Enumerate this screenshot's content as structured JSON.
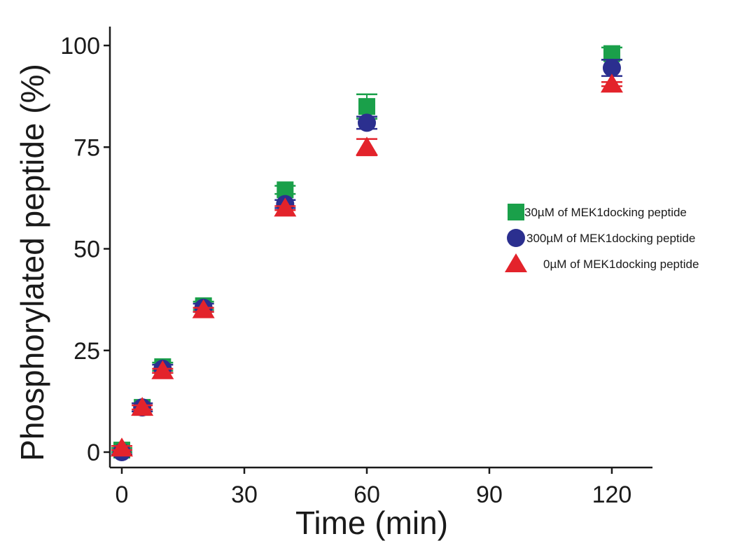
{
  "chart_data": {
    "type": "scatter",
    "title": "",
    "xlabel": "Time (min)",
    "ylabel": "Phosphorylated peptide (%)",
    "xlim": [
      -2,
      130
    ],
    "ylim": [
      -3,
      105
    ],
    "xticks": [
      0,
      30,
      60,
      90,
      120
    ],
    "yticks": [
      0,
      25,
      50,
      75,
      100
    ],
    "grid": false,
    "legend_position": "right",
    "series": [
      {
        "name": "30µM of MEK1docking peptide",
        "marker": "square",
        "color": "#1aa04a",
        "x": [
          0,
          5,
          10,
          20,
          40,
          60,
          120
        ],
        "y": [
          0.5,
          11,
          21,
          36,
          64.5,
          85,
          98
        ],
        "error": [
          0.5,
          1,
          1,
          1,
          1,
          3,
          1.5
        ]
      },
      {
        "name": "300µM of MEK1docking peptide",
        "marker": "circle",
        "color": "#2b2f8f",
        "x": [
          0,
          5,
          10,
          20,
          40,
          60,
          120
        ],
        "y": [
          0,
          11,
          20.5,
          35.5,
          61,
          81,
          94.5
        ],
        "error": [
          0.5,
          1,
          1,
          1,
          1,
          1.5,
          2
        ]
      },
      {
        "name": "0µM of MEK1docking peptide",
        "marker": "triangle",
        "color": "#e3232b",
        "x": [
          0,
          5,
          10,
          20,
          40,
          60,
          120
        ],
        "y": [
          1,
          11,
          20,
          35,
          60,
          75,
          90.5
        ],
        "error": [
          0.5,
          0.5,
          0.5,
          0.5,
          0.5,
          2,
          0.5
        ]
      }
    ]
  }
}
